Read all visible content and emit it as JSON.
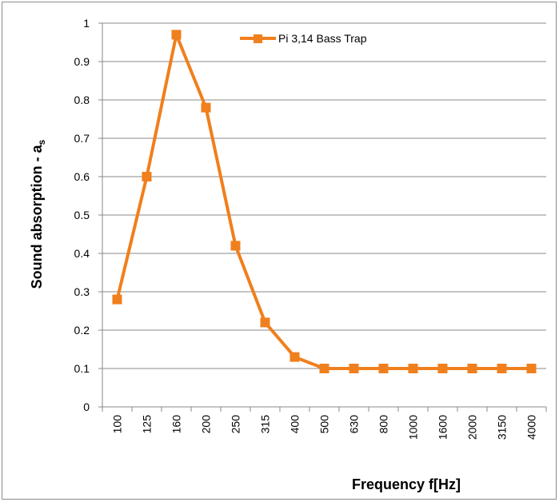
{
  "chart_data": {
    "type": "line",
    "categories": [
      "100",
      "125",
      "160",
      "200",
      "250",
      "315",
      "400",
      "500",
      "630",
      "800",
      "1000",
      "1600",
      "2000",
      "3150",
      "4000"
    ],
    "series": [
      {
        "name": "Pi 3,14 Bass Trap",
        "values": [
          0.28,
          0.6,
          0.97,
          0.78,
          0.42,
          0.22,
          0.13,
          0.1,
          0.1,
          0.1,
          0.1,
          0.1,
          0.1,
          0.1,
          0.1
        ],
        "color": "#f07f1d"
      }
    ],
    "ylim": [
      0,
      1
    ],
    "yticks": [
      "0",
      "0.1",
      "0.2",
      "0.3",
      "0.4",
      "0.5",
      "0.6",
      "0.7",
      "0.8",
      "0.9",
      "1"
    ],
    "xlabel": "Frequency f[Hz]",
    "ylabel_main": "Sound absorption - a",
    "ylabel_sub": "s",
    "grid": true,
    "legend_position": "top-right",
    "grid_color": "#898989"
  }
}
